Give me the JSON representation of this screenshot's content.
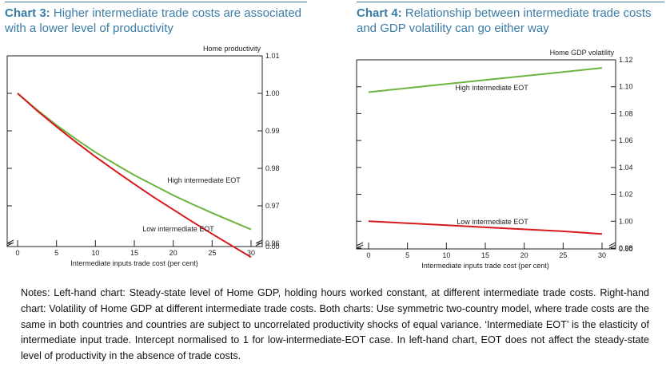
{
  "notes": "Notes: Left-hand chart: Steady-state level of Home GDP, holding hours worked constant, at different intermediate trade costs. Right-hand chart: Volatility of Home GDP at different intermediate trade costs. Both charts: Use symmetric two-country model, where trade costs are the same in both countries and countries are subject to uncorrelated productivity shocks of equal variance. ‘Intermediate EOT’ is the elasticity of intermediate input trade. Intercept normalised to 1 for low-intermediate-EOT case. In left-hand chart, EOT does not affect the steady-state level of productivity in the absence of trade costs.",
  "chart_data": [
    {
      "type": "line",
      "title_number": "Chart 3:",
      "title": "Higher intermediate trade costs are associated with a lower level of productivity",
      "xlabel": "Intermediate inputs trade cost (per cent)",
      "ylabel": "Home productivity",
      "xlim": [
        0,
        30
      ],
      "ylim": [
        0.96,
        1.01
      ],
      "x_ticks": [
        "0",
        "5",
        "10",
        "15",
        "20",
        "25",
        "30"
      ],
      "y_ticks": [
        "0.96",
        "0.97",
        "0.98",
        "0.99",
        "1.00",
        "1.01"
      ],
      "y_break_label": "0.00",
      "grid": false,
      "series": [
        {
          "name": "High intermediate EOT",
          "color": "#6db33f",
          "x": [
            0,
            2.5,
            5,
            7.5,
            10,
            12.5,
            15,
            17.5,
            20,
            22.5,
            25,
            27.5,
            30
          ],
          "y": [
            1.0,
            0.9956,
            0.9915,
            0.9878,
            0.9843,
            0.9812,
            0.9782,
            0.9755,
            0.9728,
            0.9704,
            0.9681,
            0.9659,
            0.9637
          ]
        },
        {
          "name": "Low intermediate EOT",
          "color": "#d7191c",
          "x": [
            0,
            2.5,
            5,
            7.5,
            10,
            12.5,
            15,
            17.5,
            20,
            22.5,
            25,
            27.5,
            30
          ],
          "y": [
            1.0,
            0.9954,
            0.9911,
            0.987,
            0.9831,
            0.9794,
            0.9758,
            0.9723,
            0.969,
            0.9657,
            0.9625,
            0.9594,
            0.9563
          ]
        }
      ]
    },
    {
      "type": "line",
      "title_number": "Chart 4:",
      "title": "Relationship between intermediate trade costs and GDP volatility can go either way",
      "xlabel": "Intermediate inputs trade cost (per cent)",
      "ylabel": "Home GDP volatility",
      "xlim": [
        0,
        30
      ],
      "ylim": [
        0.98,
        1.12
      ],
      "x_ticks": [
        "0",
        "5",
        "10",
        "15",
        "20",
        "25",
        "30"
      ],
      "y_ticks": [
        "0.98",
        "1.00",
        "1.02",
        "1.04",
        "1.06",
        "1.08",
        "1.10",
        "1.12"
      ],
      "y_break_label": "0.00",
      "grid": false,
      "series": [
        {
          "name": "High intermediate EOT",
          "color": "#6db33f",
          "x": [
            0,
            5,
            10,
            15,
            20,
            25,
            30
          ],
          "y": [
            1.096,
            1.099,
            1.102,
            1.105,
            1.108,
            1.111,
            1.114
          ]
        },
        {
          "name": "Low intermediate EOT",
          "color": "#d7191c",
          "x": [
            0,
            5,
            10,
            15,
            20,
            25,
            30
          ],
          "y": [
            1.0,
            0.9985,
            0.997,
            0.9955,
            0.994,
            0.9925,
            0.9905
          ]
        }
      ]
    }
  ]
}
